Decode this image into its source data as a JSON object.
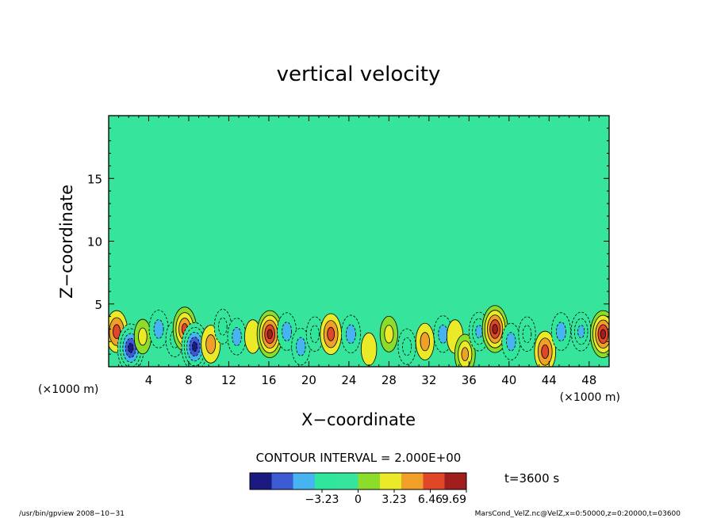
{
  "chart_data": {
    "type": "heatmap",
    "title": "vertical velocity",
    "xlabel": "X−coordinate",
    "ylabel": "Z−coordinate",
    "x_unit_left": "(×1000 m)",
    "x_unit_right": "(×1000 m)",
    "xlim": [
      0,
      50
    ],
    "ylim": [
      0,
      20
    ],
    "x_ticks": [
      4,
      8,
      12,
      16,
      20,
      24,
      28,
      32,
      36,
      40,
      44,
      48
    ],
    "y_ticks": [
      5,
      10,
      15
    ],
    "contour_interval_label": "CONTOUR INTERVAL = 2.000E+00",
    "time_label": "t=3600 s",
    "colorbar": {
      "range": [
        -9.69,
        9.69
      ],
      "tick_values": [
        -3.23,
        0,
        3.23,
        6.46,
        9.69
      ],
      "tick_labels": [
        "−3.23",
        "0",
        "3.23",
        "6.46",
        "9.69"
      ],
      "colors": [
        "#1a1a80",
        "#3c5ad2",
        "#46b4f0",
        "#30e69a",
        "#37e49b",
        "#8cdc2a",
        "#eaea28",
        "#f0a028",
        "#e04628",
        "#a01e1e"
      ]
    },
    "background_color": "#37e49b",
    "cells": [
      {
        "x": 0.8,
        "z": 2.8,
        "value": 6.5
      },
      {
        "x": 2.2,
        "z": 1.5,
        "value": -9.5
      },
      {
        "x": 3.4,
        "z": 2.4,
        "value": 3.0
      },
      {
        "x": 5.0,
        "z": 3.0,
        "value": -4.5
      },
      {
        "x": 6.6,
        "z": 2.2,
        "value": -3.5
      },
      {
        "x": 7.6,
        "z": 3.0,
        "value": 7.5
      },
      {
        "x": 8.6,
        "z": 1.6,
        "value": -9.5
      },
      {
        "x": 10.2,
        "z": 1.8,
        "value": 4.5
      },
      {
        "x": 11.4,
        "z": 3.2,
        "value": -3.0
      },
      {
        "x": 12.8,
        "z": 2.4,
        "value": -4.0
      },
      {
        "x": 14.4,
        "z": 2.4,
        "value": 2.5
      },
      {
        "x": 16.1,
        "z": 2.6,
        "value": 9.0
      },
      {
        "x": 17.8,
        "z": 2.8,
        "value": -4.5
      },
      {
        "x": 19.2,
        "z": 1.6,
        "value": -4.0
      },
      {
        "x": 20.6,
        "z": 2.6,
        "value": -3.0
      },
      {
        "x": 22.2,
        "z": 2.6,
        "value": 6.0
      },
      {
        "x": 24.2,
        "z": 2.6,
        "value": -4.5
      },
      {
        "x": 26.0,
        "z": 1.4,
        "value": 2.0
      },
      {
        "x": 28.0,
        "z": 2.6,
        "value": 3.5
      },
      {
        "x": 29.8,
        "z": 1.6,
        "value": -3.5
      },
      {
        "x": 31.6,
        "z": 2.0,
        "value": 4.0
      },
      {
        "x": 33.4,
        "z": 2.6,
        "value": -4.0
      },
      {
        "x": 34.6,
        "z": 2.4,
        "value": 2.5
      },
      {
        "x": 35.6,
        "z": 1.0,
        "value": 5.5
      },
      {
        "x": 37.0,
        "z": 2.8,
        "value": -5.0
      },
      {
        "x": 38.6,
        "z": 3.0,
        "value": 9.0
      },
      {
        "x": 40.2,
        "z": 2.0,
        "value": -4.0
      },
      {
        "x": 41.8,
        "z": 2.6,
        "value": -3.0
      },
      {
        "x": 43.6,
        "z": 1.2,
        "value": 6.0
      },
      {
        "x": 45.2,
        "z": 2.8,
        "value": -4.5
      },
      {
        "x": 47.2,
        "z": 2.8,
        "value": -5.0
      },
      {
        "x": 49.4,
        "z": 2.6,
        "value": 9.0
      }
    ]
  },
  "footer": {
    "left": "/usr/bin/gpview   2008−10−31",
    "right": "MarsCond_VelZ.nc@VelZ,x=0:50000,z=0:20000,t=03600"
  }
}
